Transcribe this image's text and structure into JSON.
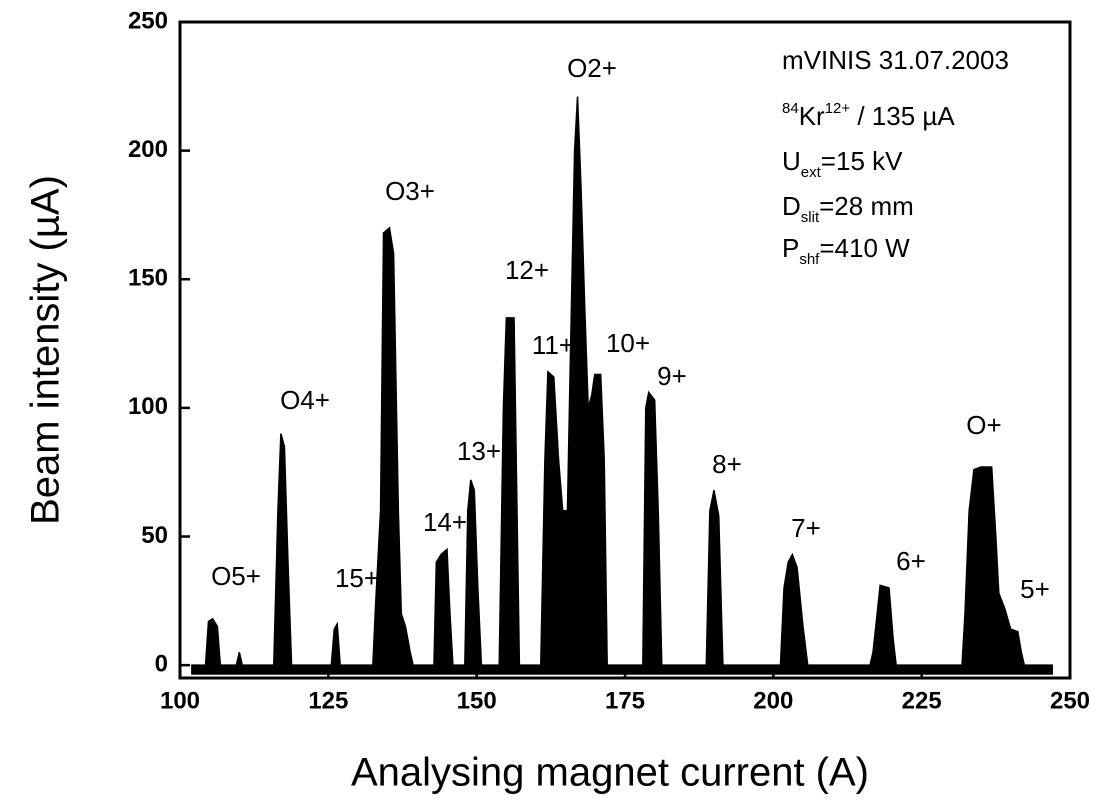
{
  "chart_data": {
    "type": "area",
    "x_label": "Analysing magnet current (A)",
    "y_label": "Beam intensity (µA)",
    "color": "#000000",
    "xlim": [
      100,
      250
    ],
    "xticks": [
      100,
      125,
      150,
      175,
      200,
      225,
      250
    ],
    "ylim": [
      -5,
      250
    ],
    "yticks": [
      0,
      50,
      100,
      150,
      200,
      250
    ],
    "x": [
      102,
      104.3,
      104.8,
      105.5,
      106.3,
      106.8,
      109.5,
      110,
      110.5,
      115.8,
      116.5,
      117,
      117.6,
      118.2,
      118.8,
      125.5,
      126,
      126.5,
      127,
      132.5,
      133,
      133.8,
      134.3,
      135.3,
      136,
      136.8,
      137.3,
      138,
      138.8,
      139.3,
      142.8,
      143.2,
      144,
      145,
      145.5,
      146,
      148,
      148.5,
      149,
      149.6,
      150.2,
      150.8,
      153.8,
      154.5,
      155,
      156.3,
      156.8,
      157.2,
      160.8,
      161.5,
      162,
      163,
      163.8,
      164.5,
      165.3,
      165.8,
      166.5,
      167,
      167.6,
      168.2,
      168.8,
      169.4,
      169.9,
      170.9,
      171.5,
      172,
      178,
      178.5,
      179,
      180,
      180.6,
      181.2,
      188.7,
      189.3,
      190,
      190.8,
      191.5,
      201.2,
      201.8,
      202.5,
      203.2,
      204,
      205,
      205.8,
      216.3,
      216.8,
      217.5,
      218,
      219.5,
      220.2,
      220.7,
      231.8,
      232.3,
      233,
      233.8,
      235,
      236.8,
      237.5,
      238,
      239,
      240,
      241.2,
      241.8,
      242.3,
      247
    ],
    "values": [
      0,
      0,
      17,
      18,
      15,
      0,
      0,
      5,
      0,
      0,
      60,
      90,
      85,
      40,
      0,
      0,
      14,
      16,
      0,
      0,
      25,
      60,
      168,
      170,
      160,
      60,
      20,
      15,
      5,
      0,
      0,
      40,
      43,
      45,
      20,
      0,
      0,
      60,
      72,
      68,
      30,
      0,
      0,
      100,
      135,
      135,
      60,
      0,
      0,
      80,
      114,
      112,
      80,
      60,
      60,
      120,
      200,
      221,
      185,
      140,
      100,
      105,
      113,
      113,
      80,
      0,
      0,
      100,
      106,
      103,
      60,
      0,
      0,
      60,
      68,
      58,
      0,
      0,
      30,
      40,
      43,
      38,
      15,
      0,
      0,
      5,
      20,
      31,
      30,
      10,
      0,
      0,
      20,
      60,
      76,
      77,
      77,
      50,
      28,
      22,
      14,
      13,
      5,
      0,
      0
    ],
    "annotations": [
      "O5+",
      "O4+",
      "15+",
      "O3+",
      "14+",
      "13+",
      "12+",
      "11+",
      "O2+",
      "10+",
      "9+",
      "8+",
      "7+",
      "6+",
      "O+",
      "5+"
    ],
    "info": [
      [
        {
          "text": "mVINIS 31.07.2003"
        }
      ],
      [
        {
          "text": "84",
          "pos": "sup"
        },
        {
          "text": "Kr"
        },
        {
          "text": "12+",
          "pos": "sup"
        },
        {
          "text": " / 135 µA"
        }
      ],
      [
        {
          "text": "U"
        },
        {
          "text": "ext",
          "pos": "sub"
        },
        {
          "text": "=15 kV"
        }
      ],
      [
        {
          "text": "D"
        },
        {
          "text": "slit",
          "pos": "sub"
        },
        {
          "text": "=28 mm"
        }
      ],
      [
        {
          "text": "P"
        },
        {
          "text": "shf",
          "pos": "sub"
        },
        {
          "text": "=410 W"
        }
      ]
    ]
  }
}
